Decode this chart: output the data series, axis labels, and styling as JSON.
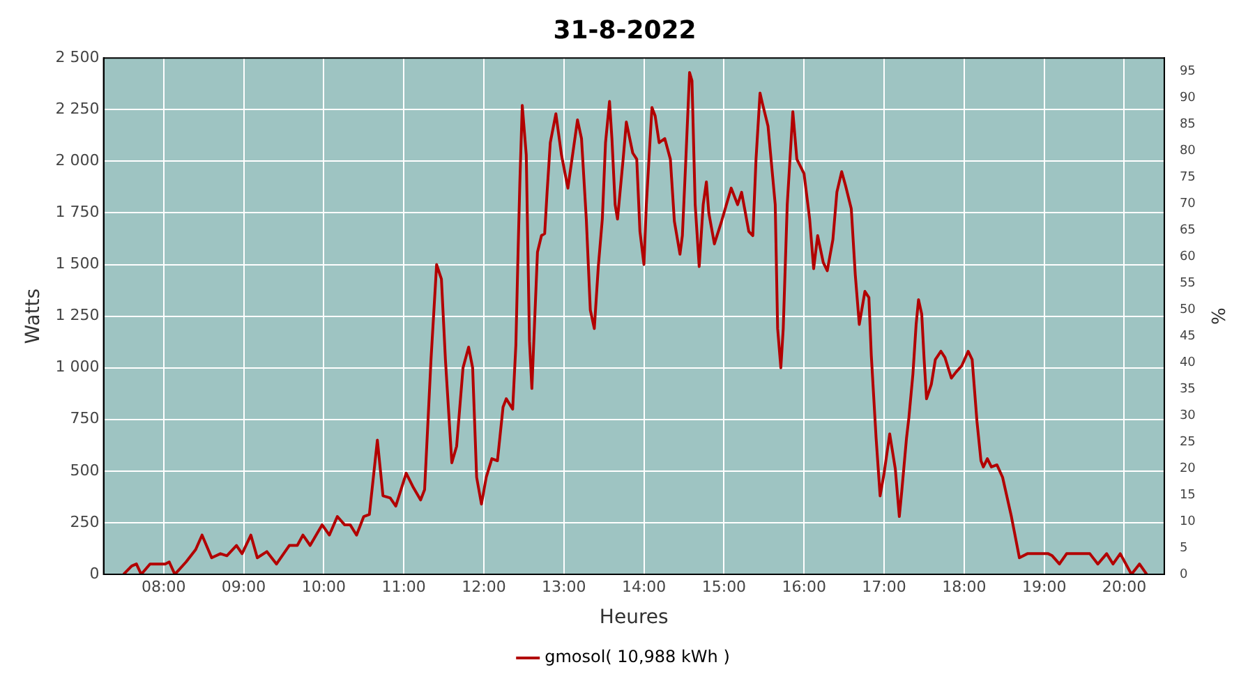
{
  "chart_data": {
    "type": "line",
    "title": "31-8-2022",
    "xlabel": "Heures",
    "ylabel": "Watts",
    "y2label": "%",
    "xlim": [
      7.25,
      20.5
    ],
    "xticks": [
      {
        "value": 8,
        "label": "08:00"
      },
      {
        "value": 9,
        "label": "09:00"
      },
      {
        "value": 10,
        "label": "10:00"
      },
      {
        "value": 11,
        "label": "11:00"
      },
      {
        "value": 12,
        "label": "12:00"
      },
      {
        "value": 13,
        "label": "13:00"
      },
      {
        "value": 14,
        "label": "14:00"
      },
      {
        "value": 15,
        "label": "15:00"
      },
      {
        "value": 16,
        "label": "16:00"
      },
      {
        "value": 17,
        "label": "17:00"
      },
      {
        "value": 18,
        "label": "18:00"
      },
      {
        "value": 19,
        "label": "19:00"
      },
      {
        "value": 20,
        "label": "20:00"
      }
    ],
    "ylim": [
      0,
      2500
    ],
    "yticks": [
      0,
      250,
      500,
      750,
      {
        "value": 1000,
        "label": "1 000"
      },
      {
        "value": 1250,
        "label": "1 250"
      },
      {
        "value": 1500,
        "label": "1 500"
      },
      {
        "value": 1750,
        "label": "1 750"
      },
      {
        "value": 2000,
        "label": "2 000"
      },
      {
        "value": 2250,
        "label": "2 250"
      },
      {
        "value": 2500,
        "label": "2 500"
      }
    ],
    "y2lim": [
      0,
      97.5
    ],
    "y2ticks": [
      0,
      5,
      10,
      15,
      20,
      25,
      30,
      35,
      40,
      45,
      50,
      55,
      60,
      65,
      70,
      75,
      80,
      85,
      90,
      95
    ],
    "grid": true,
    "legend": "bottom",
    "marker": "none",
    "line_style": "solid",
    "x": [
      7.5,
      7.6,
      7.66,
      7.72,
      7.83,
      8.02,
      8.07,
      8.14,
      8.28,
      8.4,
      8.48,
      8.6,
      8.71,
      8.79,
      8.91,
      8.98,
      9.09,
      9.17,
      9.29,
      9.41,
      9.57,
      9.67,
      9.74,
      9.83,
      9.98,
      10.07,
      10.17,
      10.26,
      10.33,
      10.41,
      10.5,
      10.57,
      10.67,
      10.74,
      10.83,
      10.9,
      11.03,
      11.12,
      11.21,
      11.26,
      11.34,
      11.41,
      11.47,
      11.52,
      11.6,
      11.66,
      11.74,
      11.81,
      11.86,
      11.91,
      11.97,
      12.03,
      12.1,
      12.17,
      12.24,
      12.28,
      12.36,
      12.4,
      12.43,
      12.45,
      12.48,
      12.53,
      12.57,
      12.6,
      12.67,
      12.72,
      12.76,
      12.79,
      12.83,
      12.9,
      12.97,
      13.05,
      13.09,
      13.17,
      13.22,
      13.28,
      13.33,
      13.38,
      13.43,
      13.48,
      13.52,
      13.57,
      13.6,
      13.64,
      13.67,
      13.74,
      13.78,
      13.86,
      13.91,
      13.95,
      14.0,
      14.03,
      14.1,
      14.14,
      14.19,
      14.26,
      14.33,
      14.38,
      14.45,
      14.48,
      14.52,
      14.57,
      14.6,
      14.64,
      14.69,
      14.74,
      14.78,
      14.81,
      14.88,
      14.97,
      15.09,
      15.17,
      15.22,
      15.31,
      15.36,
      15.4,
      15.45,
      15.48,
      15.55,
      15.64,
      15.67,
      15.71,
      15.74,
      15.79,
      15.86,
      15.91,
      16.0,
      16.07,
      16.12,
      16.17,
      16.24,
      16.29,
      16.36,
      16.41,
      16.47,
      16.52,
      16.59,
      16.64,
      16.69,
      16.76,
      16.81,
      16.84,
      16.9,
      16.95,
      17.0,
      17.07,
      17.14,
      17.19,
      17.22,
      17.28,
      17.31,
      17.36,
      17.4,
      17.43,
      17.47,
      17.5,
      17.53,
      17.59,
      17.64,
      17.71,
      17.76,
      17.84,
      17.9,
      17.97,
      18.05,
      18.1,
      18.16,
      18.21,
      18.24,
      18.29,
      18.34,
      18.41,
      18.48,
      18.59,
      18.69,
      18.79,
      19.05,
      19.1,
      19.19,
      19.28,
      19.57,
      19.67,
      19.78,
      19.86,
      19.95,
      20.09,
      20.19,
      20.28
    ],
    "series": [
      {
        "name": "gmosol( 10,988 kWh )",
        "color": "#b20000",
        "values": [
          0,
          40,
          50,
          0,
          50,
          50,
          60,
          0,
          60,
          120,
          190,
          80,
          100,
          90,
          140,
          100,
          190,
          80,
          110,
          50,
          140,
          140,
          190,
          140,
          240,
          190,
          280,
          240,
          240,
          190,
          280,
          290,
          650,
          380,
          370,
          330,
          490,
          420,
          360,
          410,
          1040,
          1500,
          1430,
          1040,
          540,
          620,
          1000,
          1100,
          1000,
          470,
          340,
          470,
          560,
          550,
          810,
          850,
          800,
          1110,
          1600,
          1900,
          2270,
          2030,
          1130,
          900,
          1560,
          1640,
          1650,
          1850,
          2090,
          2230,
          2030,
          1870,
          1980,
          2200,
          2110,
          1720,
          1280,
          1190,
          1490,
          1720,
          2090,
          2290,
          2110,
          1790,
          1720,
          2010,
          2190,
          2040,
          2010,
          1660,
          1500,
          1790,
          2260,
          2220,
          2090,
          2110,
          2010,
          1710,
          1550,
          1640,
          1980,
          2430,
          2390,
          1790,
          1490,
          1790,
          1900,
          1750,
          1600,
          1710,
          1870,
          1790,
          1850,
          1660,
          1640,
          2010,
          2330,
          2280,
          2170,
          1790,
          1190,
          1000,
          1190,
          1790,
          2240,
          2010,
          1940,
          1720,
          1480,
          1640,
          1510,
          1470,
          1620,
          1850,
          1950,
          1880,
          1770,
          1450,
          1210,
          1370,
          1340,
          1060,
          660,
          380,
          490,
          680,
          510,
          280,
          400,
          660,
          760,
          970,
          1210,
          1330,
          1260,
          1040,
          850,
          920,
          1040,
          1080,
          1050,
          950,
          980,
          1010,
          1080,
          1040,
          740,
          550,
          520,
          560,
          520,
          530,
          470,
          280,
          80,
          100,
          100,
          90,
          50,
          100,
          100,
          50,
          100,
          50,
          100,
          0,
          50,
          0
        ]
      }
    ]
  }
}
